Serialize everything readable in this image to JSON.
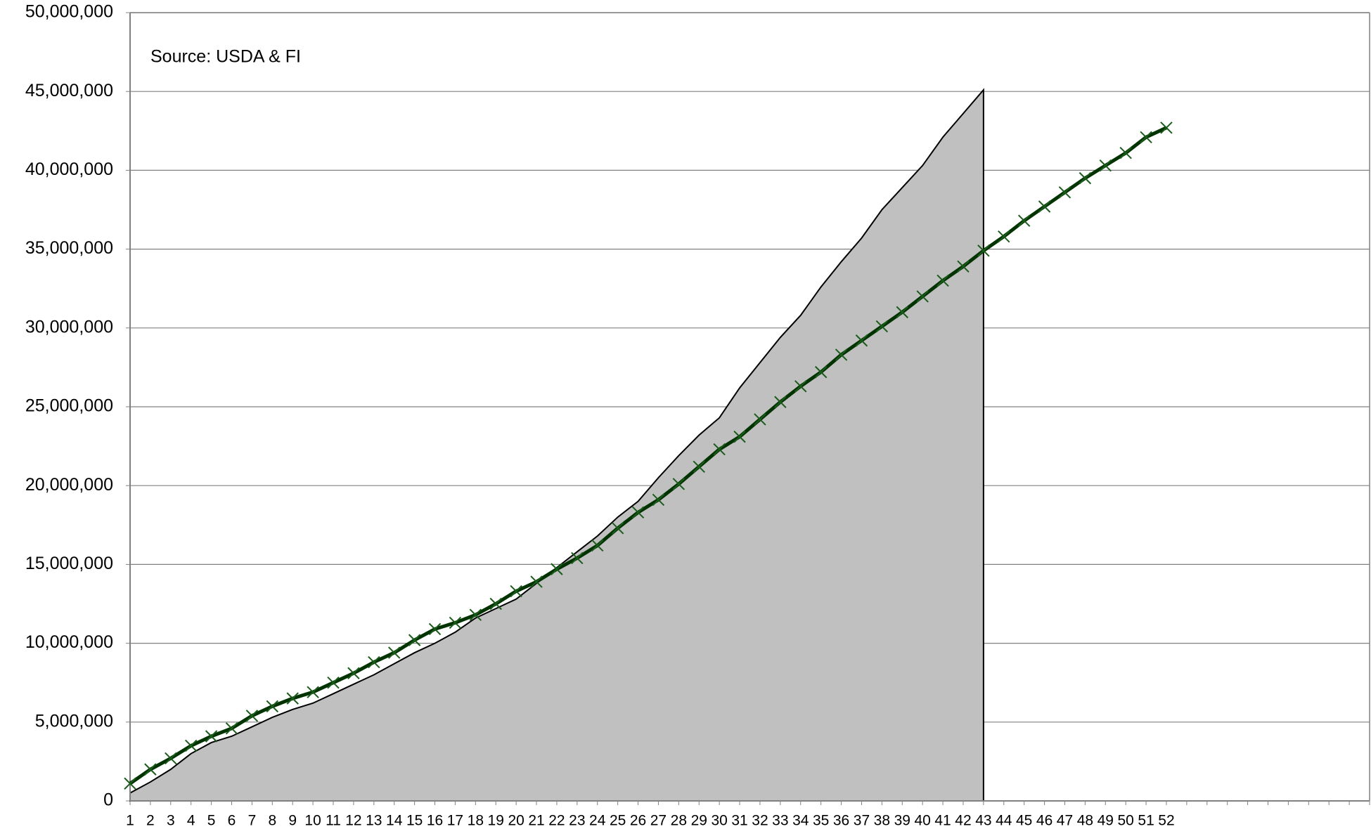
{
  "chart_data": {
    "type": "line",
    "annotation": "Source: USDA & FI",
    "categories": [
      "1",
      "2",
      "3",
      "4",
      "5",
      "6",
      "7",
      "8",
      "9",
      "10",
      "11",
      "12",
      "13",
      "14",
      "15",
      "16",
      "17",
      "18",
      "19",
      "20",
      "21",
      "22",
      "23",
      "24",
      "25",
      "26",
      "27",
      "28",
      "29",
      "30",
      "31",
      "32",
      "33",
      "34",
      "35",
      "36",
      "37",
      "38",
      "39",
      "40",
      "41",
      "42",
      "43",
      "44",
      "45",
      "46",
      "47",
      "48",
      "49",
      "50",
      "51",
      "52",
      null,
      null,
      null,
      null,
      null,
      null,
      null,
      null,
      null,
      null
    ],
    "series": [
      {
        "kind": "area",
        "color": "#c0c0c0",
        "values": [
          500000,
          1200000,
          2000000,
          3000000,
          3700000,
          4100000,
          4700000,
          5300000,
          5800000,
          6200000,
          6800000,
          7400000,
          8000000,
          8700000,
          9400000,
          10000000,
          10700000,
          11600000,
          12200000,
          12800000,
          13800000,
          14800000,
          15800000,
          16800000,
          18000000,
          19000000,
          20500000,
          21900000,
          23200000,
          24300000,
          26200000,
          27800000,
          29400000,
          30800000,
          32600000,
          34200000,
          35700000,
          37500000,
          38900000,
          40300000,
          42100000,
          43600000,
          45100000,
          null,
          null,
          null,
          null,
          null,
          null,
          null,
          null,
          null,
          null,
          null,
          null,
          null,
          null,
          null,
          null,
          null,
          null,
          null
        ]
      },
      {
        "kind": "line",
        "color": "#003300",
        "values": [
          1100000,
          2000000,
          2700000,
          3500000,
          4100000,
          4600000,
          5400000,
          6000000,
          6500000,
          6900000,
          7500000,
          8100000,
          8800000,
          9400000,
          10200000,
          10900000,
          11300000,
          11800000,
          12500000,
          13300000,
          13900000,
          14700000,
          15400000,
          16200000,
          17300000,
          18300000,
          19100000,
          20100000,
          21200000,
          22300000,
          23100000,
          24200000,
          25300000,
          26300000,
          27200000,
          28300000,
          29200000,
          30100000,
          31000000,
          32000000,
          33000000,
          33900000,
          34900000,
          35800000,
          36800000,
          37700000,
          38600000,
          39500000,
          40300000,
          41100000,
          42100000,
          42700000,
          null,
          null,
          null,
          null,
          null,
          null,
          null,
          null,
          null,
          null
        ]
      }
    ],
    "ylim": [
      0,
      50000000
    ],
    "yticks": [
      {
        "value": 0,
        "label": "0"
      },
      {
        "value": 5000000,
        "label": "5,000,000"
      },
      {
        "value": 10000000,
        "label": "10,000,000"
      },
      {
        "value": 15000000,
        "label": "15,000,000"
      },
      {
        "value": 20000000,
        "label": "20,000,000"
      },
      {
        "value": 25000000,
        "label": "25,000,000"
      },
      {
        "value": 30000000,
        "label": "30,000,000"
      },
      {
        "value": 35000000,
        "label": "35,000,000"
      },
      {
        "value": 40000000,
        "label": "40,000,000"
      },
      {
        "value": 45000000,
        "label": "45,000,000"
      },
      {
        "value": 50000000,
        "label": "50,000,000"
      }
    ],
    "grid": true
  }
}
